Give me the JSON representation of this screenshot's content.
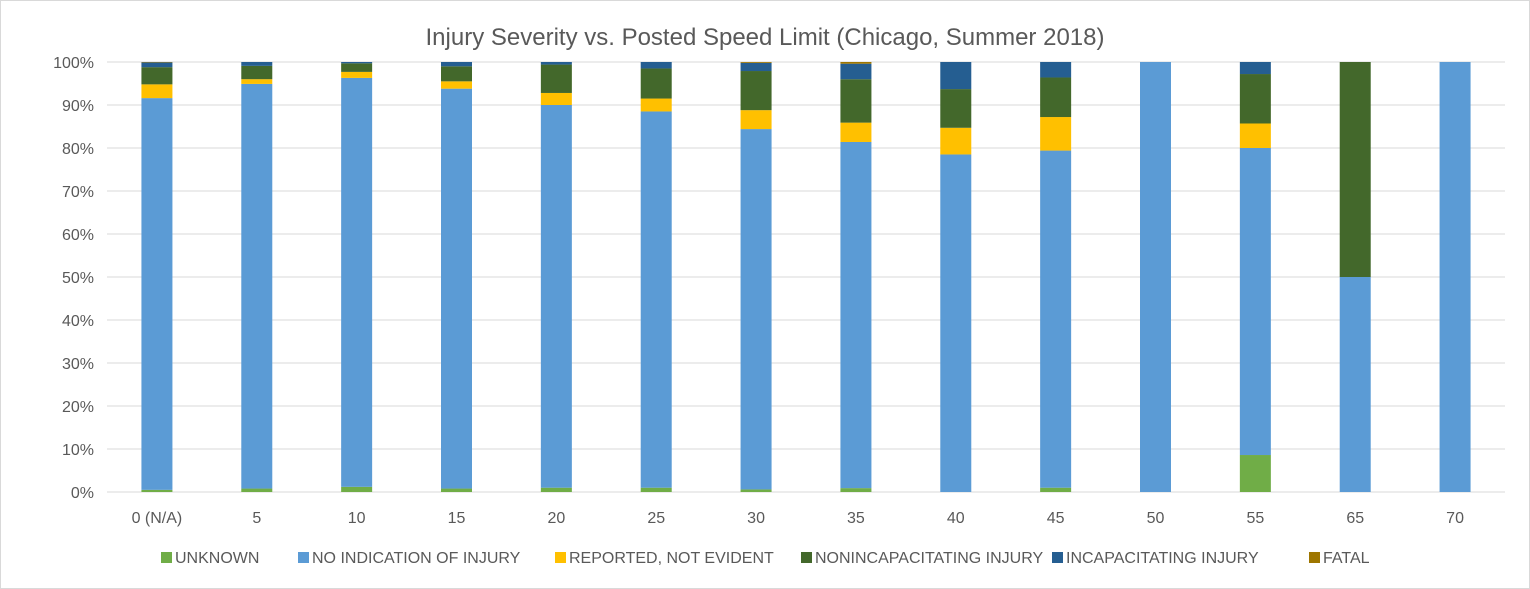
{
  "chart_data": {
    "type": "bar",
    "stacked": true,
    "percent_stacked": true,
    "title": "Injury Severity vs. Posted Speed Limit (Chicago, Summer 2018)",
    "xlabel": "",
    "ylabel": "",
    "categories": [
      "0 (N/A)",
      "5",
      "10",
      "15",
      "20",
      "25",
      "30",
      "35",
      "40",
      "45",
      "50",
      "55",
      "65",
      "70"
    ],
    "ylim": [
      0,
      1
    ],
    "y_ticks": [
      0,
      0.1,
      0.2,
      0.3,
      0.4,
      0.5,
      0.6,
      0.7,
      0.8,
      0.9,
      1.0
    ],
    "y_tick_labels": [
      "0%",
      "10%",
      "20%",
      "30%",
      "40%",
      "50%",
      "60%",
      "70%",
      "80%",
      "90%",
      "100%"
    ],
    "grid": true,
    "legend_position": "bottom",
    "series": [
      {
        "name": "UNKNOWN",
        "color": "#70ad47",
        "values": [
          0.005,
          0.008,
          0.012,
          0.008,
          0.01,
          0.01,
          0.006,
          0.009,
          0.0,
          0.01,
          0.0,
          0.086,
          0.0,
          0.0
        ]
      },
      {
        "name": "NO INDICATION OF INJURY",
        "color": "#5b9bd5",
        "values": [
          0.911,
          0.941,
          0.951,
          0.93,
          0.89,
          0.875,
          0.838,
          0.805,
          0.785,
          0.784,
          1.0,
          0.714,
          0.5,
          1.0
        ]
      },
      {
        "name": "REPORTED, NOT EVIDENT",
        "color": "#ffc000",
        "values": [
          0.032,
          0.011,
          0.014,
          0.017,
          0.028,
          0.03,
          0.044,
          0.045,
          0.062,
          0.078,
          0.0,
          0.057,
          0.0,
          0.0
        ]
      },
      {
        "name": "NONINCAPACITATING INJURY",
        "color": "#43682b",
        "values": [
          0.04,
          0.031,
          0.02,
          0.035,
          0.066,
          0.07,
          0.091,
          0.101,
          0.09,
          0.092,
          0.0,
          0.115,
          0.5,
          0.0
        ]
      },
      {
        "name": "INCAPACITATING INJURY",
        "color": "#255e91",
        "values": [
          0.011,
          0.009,
          0.003,
          0.01,
          0.006,
          0.015,
          0.019,
          0.036,
          0.063,
          0.036,
          0.0,
          0.028,
          0.0,
          0.0
        ]
      },
      {
        "name": "FATAL",
        "color": "#9e7600",
        "values": [
          0.001,
          0.0,
          0.0,
          0.0,
          0.0,
          0.0,
          0.002,
          0.004,
          0.0,
          0.0,
          0.0,
          0.0,
          0.0,
          0.0
        ]
      }
    ]
  }
}
